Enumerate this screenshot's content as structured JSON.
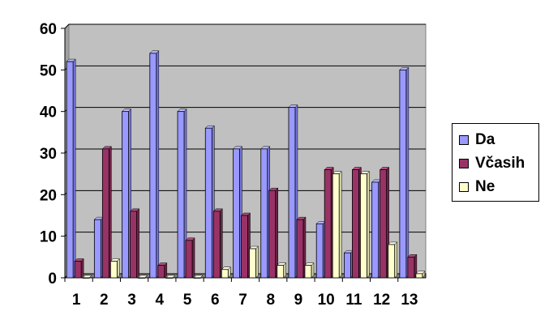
{
  "chart_data": {
    "type": "bar",
    "categories": [
      "1",
      "2",
      "3",
      "4",
      "5",
      "6",
      "7",
      "8",
      "9",
      "10",
      "11",
      "12",
      "13"
    ],
    "series": [
      {
        "name": "Da",
        "color": "#9999ff",
        "values": [
          52,
          14,
          40,
          54,
          40,
          36,
          31,
          31,
          41,
          13,
          6,
          23,
          50
        ]
      },
      {
        "name": "Včasih",
        "color": "#993366",
        "values": [
          4,
          31,
          16,
          3,
          9,
          16,
          15,
          21,
          14,
          26,
          26,
          26,
          5
        ]
      },
      {
        "name": "Ne",
        "color": "#ffffcc",
        "values": [
          0,
          4,
          0,
          0,
          0,
          2,
          7,
          3,
          3,
          25,
          25,
          8,
          1
        ]
      }
    ],
    "ylim": [
      0,
      60
    ],
    "yticks": [
      0,
      10,
      20,
      30,
      40,
      50,
      60
    ],
    "grid": true,
    "plot_background": "#c0c0c0",
    "legend_position": "right"
  }
}
